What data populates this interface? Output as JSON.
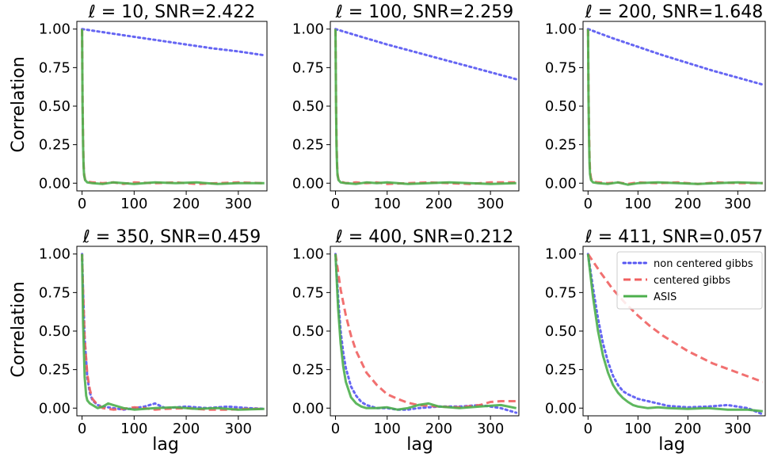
{
  "figure": {
    "ylabel": "Correlation",
    "xlabel": "lag"
  },
  "legend": [
    {
      "name": "non centered gibbs",
      "color": "#5555f2",
      "style": "dotted"
    },
    {
      "name": "centered gibbs",
      "color": "#f06060",
      "style": "dashed"
    },
    {
      "name": "ASIS",
      "color": "#4caf4c",
      "style": "solid"
    }
  ],
  "chart_data": [
    {
      "type": "line",
      "title": "ℓ = 10, SNR=2.422",
      "xlim": [
        -10,
        355
      ],
      "ylim": [
        -0.05,
        1.05
      ],
      "xticks": [
        0,
        100,
        200,
        300
      ],
      "xtick_labels": [
        "0",
        "100",
        "200",
        "300"
      ],
      "yticks": [
        0,
        0.25,
        0.5,
        0.75,
        1.0
      ],
      "ytick_labels": [
        "0.00",
        "0.25",
        "0.50",
        "0.75",
        "1.00"
      ],
      "series": [
        {
          "name": "non centered gibbs",
          "x": [
            0,
            50,
            100,
            150,
            200,
            250,
            300,
            350
          ],
          "y": [
            1.0,
            0.975,
            0.95,
            0.925,
            0.9,
            0.875,
            0.855,
            0.83
          ]
        },
        {
          "name": "centered gibbs",
          "x": [
            0,
            1,
            2,
            3,
            4,
            6,
            10,
            20,
            40,
            60,
            80,
            100,
            140,
            180,
            220,
            260,
            300,
            350
          ],
          "y": [
            1.0,
            0.55,
            0.28,
            0.13,
            0.06,
            0.02,
            0.01,
            0.005,
            0.0,
            0.005,
            -0.005,
            0.005,
            0.0,
            0.005,
            -0.005,
            0.0,
            0.005,
            0.0
          ]
        },
        {
          "name": "ASIS",
          "x": [
            0,
            1,
            2,
            3,
            4,
            6,
            10,
            20,
            40,
            60,
            80,
            100,
            140,
            180,
            220,
            260,
            300,
            350
          ],
          "y": [
            1.0,
            0.5,
            0.24,
            0.11,
            0.05,
            0.02,
            0.005,
            0.0,
            -0.005,
            0.005,
            0.0,
            -0.005,
            0.005,
            0.0,
            0.005,
            -0.005,
            0.0,
            0.0
          ]
        }
      ]
    },
    {
      "type": "line",
      "title": "ℓ = 100, SNR=2.259",
      "xlim": [
        -10,
        355
      ],
      "ylim": [
        -0.05,
        1.05
      ],
      "xticks": [
        0,
        100,
        200,
        300
      ],
      "xtick_labels": [
        "0",
        "100",
        "200",
        "300"
      ],
      "yticks": [
        0,
        0.25,
        0.5,
        0.75,
        1.0
      ],
      "ytick_labels": [
        "0.00",
        "0.25",
        "0.50",
        "0.75",
        "1.00"
      ],
      "series": [
        {
          "name": "non centered gibbs",
          "x": [
            0,
            50,
            100,
            150,
            200,
            250,
            300,
            350
          ],
          "y": [
            1.0,
            0.95,
            0.9,
            0.855,
            0.81,
            0.765,
            0.72,
            0.675
          ]
        },
        {
          "name": "centered gibbs",
          "x": [
            0,
            1,
            2,
            3,
            4,
            6,
            10,
            20,
            40,
            60,
            80,
            100,
            140,
            180,
            220,
            260,
            300,
            350
          ],
          "y": [
            1.0,
            0.55,
            0.28,
            0.13,
            0.06,
            0.02,
            0.01,
            0.0,
            0.005,
            0.0,
            0.005,
            -0.005,
            0.0,
            0.005,
            0.0,
            -0.005,
            0.005,
            0.005
          ]
        },
        {
          "name": "ASIS",
          "x": [
            0,
            1,
            2,
            3,
            4,
            6,
            10,
            20,
            40,
            60,
            80,
            100,
            140,
            180,
            220,
            260,
            300,
            350
          ],
          "y": [
            1.0,
            0.5,
            0.24,
            0.11,
            0.05,
            0.02,
            0.005,
            0.0,
            -0.005,
            0.005,
            0.0,
            0.005,
            -0.005,
            0.0,
            0.005,
            0.0,
            -0.005,
            0.0
          ]
        }
      ]
    },
    {
      "type": "line",
      "title": "ℓ = 200, SNR=1.648",
      "xlim": [
        -10,
        355
      ],
      "ylim": [
        -0.05,
        1.05
      ],
      "xticks": [
        0,
        100,
        200,
        300
      ],
      "xtick_labels": [
        "0",
        "100",
        "200",
        "300"
      ],
      "yticks": [
        0,
        0.25,
        0.5,
        0.75,
        1.0
      ],
      "ytick_labels": [
        "0.00",
        "0.25",
        "0.50",
        "0.75",
        "1.00"
      ],
      "series": [
        {
          "name": "non centered gibbs",
          "x": [
            0,
            50,
            100,
            150,
            200,
            250,
            300,
            350
          ],
          "y": [
            1.0,
            0.94,
            0.885,
            0.83,
            0.78,
            0.73,
            0.685,
            0.64
          ]
        },
        {
          "name": "centered gibbs",
          "x": [
            0,
            1,
            2,
            3,
            4,
            6,
            10,
            20,
            40,
            60,
            80,
            100,
            140,
            180,
            220,
            260,
            300,
            350
          ],
          "y": [
            1.0,
            0.6,
            0.33,
            0.17,
            0.08,
            0.03,
            0.01,
            0.005,
            0.0,
            0.005,
            -0.005,
            0.005,
            0.0,
            0.005,
            -0.005,
            0.005,
            0.0,
            0.0
          ]
        },
        {
          "name": "ASIS",
          "x": [
            0,
            1,
            2,
            3,
            4,
            6,
            10,
            20,
            40,
            60,
            80,
            100,
            140,
            180,
            220,
            260,
            300,
            350
          ],
          "y": [
            1.0,
            0.55,
            0.28,
            0.13,
            0.06,
            0.02,
            0.005,
            0.0,
            -0.005,
            0.005,
            -0.01,
            0.0,
            0.005,
            0.0,
            -0.005,
            0.0,
            0.005,
            0.0
          ]
        }
      ]
    },
    {
      "type": "line",
      "title": "ℓ = 350, SNR=0.459",
      "xlim": [
        -10,
        355
      ],
      "ylim": [
        -0.05,
        1.05
      ],
      "xticks": [
        0,
        100,
        200,
        300
      ],
      "xtick_labels": [
        "0",
        "100",
        "200",
        "300"
      ],
      "yticks": [
        0,
        0.25,
        0.5,
        0.75,
        1.0
      ],
      "ytick_labels": [
        "0.00",
        "0.25",
        "0.50",
        "0.75",
        "1.00"
      ],
      "series": [
        {
          "name": "non centered gibbs",
          "x": [
            0,
            2,
            5,
            10,
            15,
            20,
            30,
            40,
            60,
            80,
            100,
            120,
            140,
            160,
            200,
            240,
            280,
            320,
            350
          ],
          "y": [
            1.0,
            0.75,
            0.45,
            0.2,
            0.1,
            0.05,
            0.02,
            0.01,
            0.0,
            -0.01,
            0.0,
            0.01,
            0.03,
            0.0,
            0.01,
            0.0,
            0.01,
            0.0,
            -0.005
          ]
        },
        {
          "name": "centered gibbs",
          "x": [
            0,
            2,
            5,
            10,
            15,
            20,
            30,
            40,
            60,
            80,
            100,
            120,
            140,
            160,
            200,
            240,
            280,
            320,
            350
          ],
          "y": [
            1.0,
            0.75,
            0.45,
            0.22,
            0.12,
            0.06,
            0.02,
            0.0,
            -0.01,
            -0.005,
            0.005,
            0.0,
            -0.01,
            -0.005,
            0.0,
            -0.01,
            -0.01,
            -0.005,
            -0.005
          ]
        },
        {
          "name": "ASIS",
          "x": [
            0,
            2,
            5,
            8,
            10,
            15,
            20,
            30,
            40,
            50,
            60,
            80,
            100,
            140,
            180,
            220,
            260,
            300,
            350
          ],
          "y": [
            1.0,
            0.55,
            0.2,
            0.08,
            0.05,
            0.03,
            0.02,
            0.0,
            0.01,
            0.03,
            0.02,
            0.0,
            -0.01,
            0.0,
            0.005,
            -0.005,
            0.0,
            -0.01,
            -0.005
          ]
        }
      ]
    },
    {
      "type": "line",
      "title": "ℓ = 400, SNR=0.212",
      "xlim": [
        -10,
        355
      ],
      "ylim": [
        -0.05,
        1.05
      ],
      "xticks": [
        0,
        100,
        200,
        300
      ],
      "xtick_labels": [
        "0",
        "100",
        "200",
        "300"
      ],
      "yticks": [
        0,
        0.25,
        0.5,
        0.75,
        1.0
      ],
      "ytick_labels": [
        "0.00",
        "0.25",
        "0.50",
        "0.75",
        "1.00"
      ],
      "series": [
        {
          "name": "non centered gibbs",
          "x": [
            0,
            5,
            10,
            15,
            20,
            30,
            40,
            50,
            60,
            80,
            100,
            120,
            140,
            160,
            200,
            240,
            280,
            320,
            350
          ],
          "y": [
            1.0,
            0.72,
            0.5,
            0.36,
            0.26,
            0.14,
            0.08,
            0.04,
            0.02,
            0.0,
            0.0,
            -0.01,
            -0.01,
            0.0,
            0.01,
            0.01,
            0.02,
            0.0,
            -0.03
          ]
        },
        {
          "name": "centered gibbs",
          "x": [
            0,
            10,
            20,
            30,
            40,
            60,
            80,
            100,
            120,
            140,
            160,
            180,
            200,
            240,
            280,
            300,
            320,
            350
          ],
          "y": [
            1.0,
            0.77,
            0.6,
            0.47,
            0.37,
            0.23,
            0.15,
            0.09,
            0.06,
            0.035,
            0.02,
            0.015,
            0.01,
            0.005,
            0.02,
            0.04,
            0.045,
            0.045
          ]
        },
        {
          "name": "ASIS",
          "x": [
            0,
            5,
            10,
            15,
            20,
            30,
            40,
            50,
            60,
            80,
            100,
            120,
            140,
            160,
            180,
            200,
            240,
            280,
            320,
            350
          ],
          "y": [
            1.0,
            0.65,
            0.42,
            0.27,
            0.17,
            0.07,
            0.03,
            0.01,
            0.0,
            0.0,
            0.005,
            -0.01,
            0.0,
            0.02,
            0.03,
            0.01,
            0.0,
            0.01,
            0.02,
            0.0
          ]
        }
      ]
    },
    {
      "type": "line",
      "title": "ℓ = 411, SNR=0.057",
      "xlim": [
        -10,
        355
      ],
      "ylim": [
        -0.05,
        1.05
      ],
      "xticks": [
        0,
        100,
        200,
        300
      ],
      "xtick_labels": [
        "0",
        "100",
        "200",
        "300"
      ],
      "yticks": [
        0,
        0.25,
        0.5,
        0.75,
        1.0
      ],
      "ytick_labels": [
        "0.00",
        "0.25",
        "0.50",
        "0.75",
        "1.00"
      ],
      "series": [
        {
          "name": "non centered gibbs",
          "x": [
            0,
            10,
            20,
            30,
            40,
            50,
            60,
            70,
            80,
            100,
            120,
            140,
            160,
            200,
            240,
            280,
            320,
            350
          ],
          "y": [
            1.0,
            0.78,
            0.58,
            0.42,
            0.3,
            0.21,
            0.15,
            0.11,
            0.09,
            0.06,
            0.045,
            0.03,
            0.015,
            0.005,
            0.01,
            0.02,
            0.0,
            -0.04
          ]
        },
        {
          "name": "centered gibbs",
          "x": [
            0,
            25,
            50,
            75,
            100,
            125,
            150,
            175,
            200,
            225,
            250,
            275,
            300,
            325,
            350
          ],
          "y": [
            1.0,
            0.88,
            0.77,
            0.68,
            0.6,
            0.53,
            0.47,
            0.42,
            0.37,
            0.33,
            0.29,
            0.26,
            0.23,
            0.2,
            0.17
          ]
        },
        {
          "name": "ASIS",
          "x": [
            0,
            10,
            20,
            30,
            40,
            50,
            60,
            70,
            80,
            90,
            100,
            120,
            140,
            160,
            200,
            240,
            280,
            320,
            350
          ],
          "y": [
            1.0,
            0.72,
            0.5,
            0.34,
            0.23,
            0.15,
            0.1,
            0.065,
            0.04,
            0.02,
            0.01,
            0.0,
            0.005,
            0.0,
            -0.005,
            0.0,
            -0.01,
            -0.01,
            -0.02
          ]
        }
      ]
    }
  ]
}
